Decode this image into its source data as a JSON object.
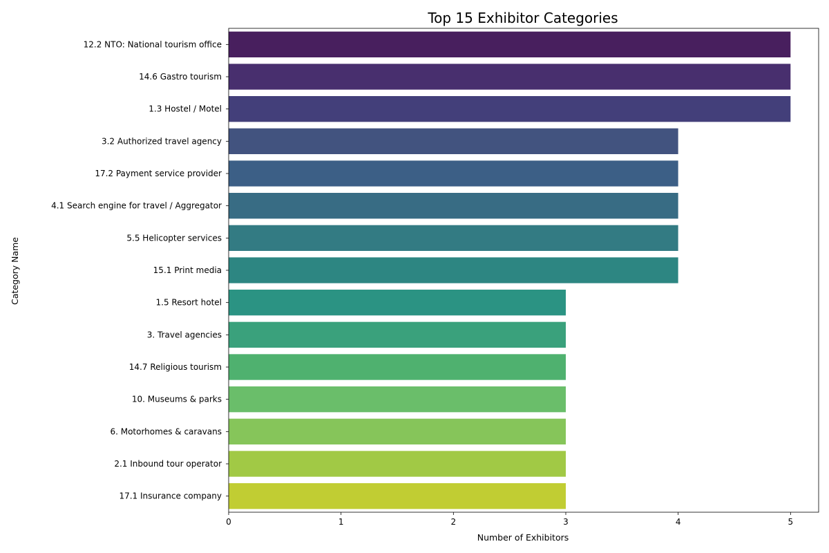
{
  "chart_data": {
    "type": "bar",
    "orientation": "horizontal",
    "title": "Top 15 Exhibitor Categories",
    "xlabel": "Number of Exhibitors",
    "ylabel": "Category Name",
    "xlim": [
      0,
      5.25
    ],
    "x_ticks": [
      "0",
      "1",
      "2",
      "3",
      "4",
      "5"
    ],
    "grid": false,
    "categories": [
      "12.2 NTO: National tourism office",
      "14.6 Gastro tourism",
      "1.3 Hostel / Motel",
      "3.2 Authorized travel agency",
      "17.2 Payment service provider",
      "4.1 Search engine for travel / Aggregator",
      "5.5 Helicopter services",
      "15.1 Print media",
      "1.5 Resort hotel",
      "3. Travel  agencies",
      "14.7 Religious tourism",
      "10. Museums & parks",
      "6. Motorhomes & caravans",
      "2.1 Inbound tour operator",
      "17.1 Insurance company"
    ],
    "values": [
      5,
      5,
      5,
      4,
      4,
      4,
      4,
      4,
      3,
      3,
      3,
      3,
      3,
      3,
      3
    ],
    "colors": [
      "#481f5e",
      "#482f6e",
      "#433f7a",
      "#42537f",
      "#3c5f86",
      "#386c84",
      "#337b83",
      "#2d8682",
      "#2b9383",
      "#3aa17c",
      "#4fb16f",
      "#6abe6a",
      "#86c55a",
      "#a1c945",
      "#c1cd33"
    ]
  }
}
